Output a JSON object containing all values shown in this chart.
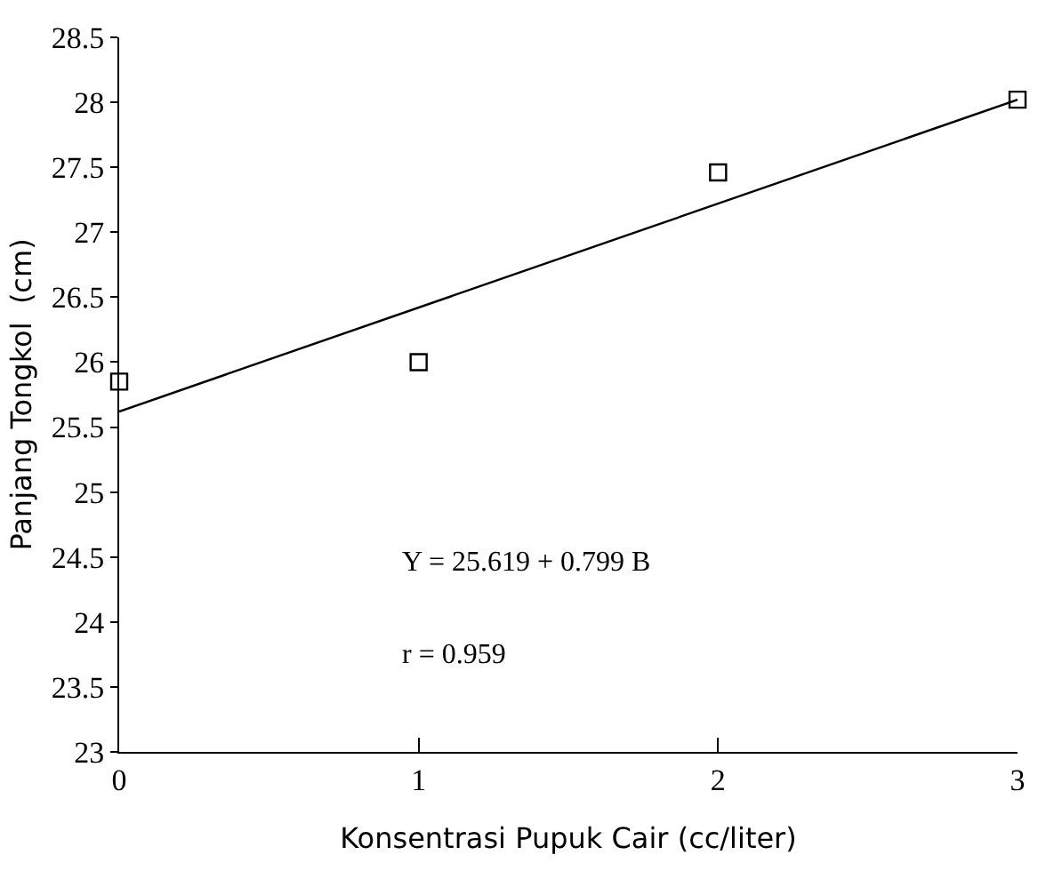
{
  "chart_data": {
    "type": "scatter",
    "xlabel": "Konsentrasi Pupuk Cair (cc/liter)",
    "ylabel": "Panjang Tongkol  (cm)",
    "xlim": [
      0,
      3
    ],
    "xticks": [
      0,
      1,
      2,
      3
    ],
    "ylim": [
      23,
      28.5
    ],
    "yticks": [
      23,
      23.5,
      24,
      24.5,
      25,
      25.5,
      26,
      26.5,
      27,
      27.5,
      28,
      28.5
    ],
    "series": [
      {
        "x": [
          0,
          1,
          2,
          3
        ],
        "values": [
          25.85,
          26.0,
          27.46,
          28.02
        ],
        "color": "#000000",
        "marker": "square"
      },
      {
        "type": "line",
        "x": [
          0,
          3
        ],
        "values": [
          25.62,
          28.02
        ],
        "color": "#000000",
        "line_style": "solid",
        "marker": "none"
      }
    ],
    "annotations": [
      "Y = 25.619 + 0.799 B",
      "r = 0.959"
    ]
  }
}
